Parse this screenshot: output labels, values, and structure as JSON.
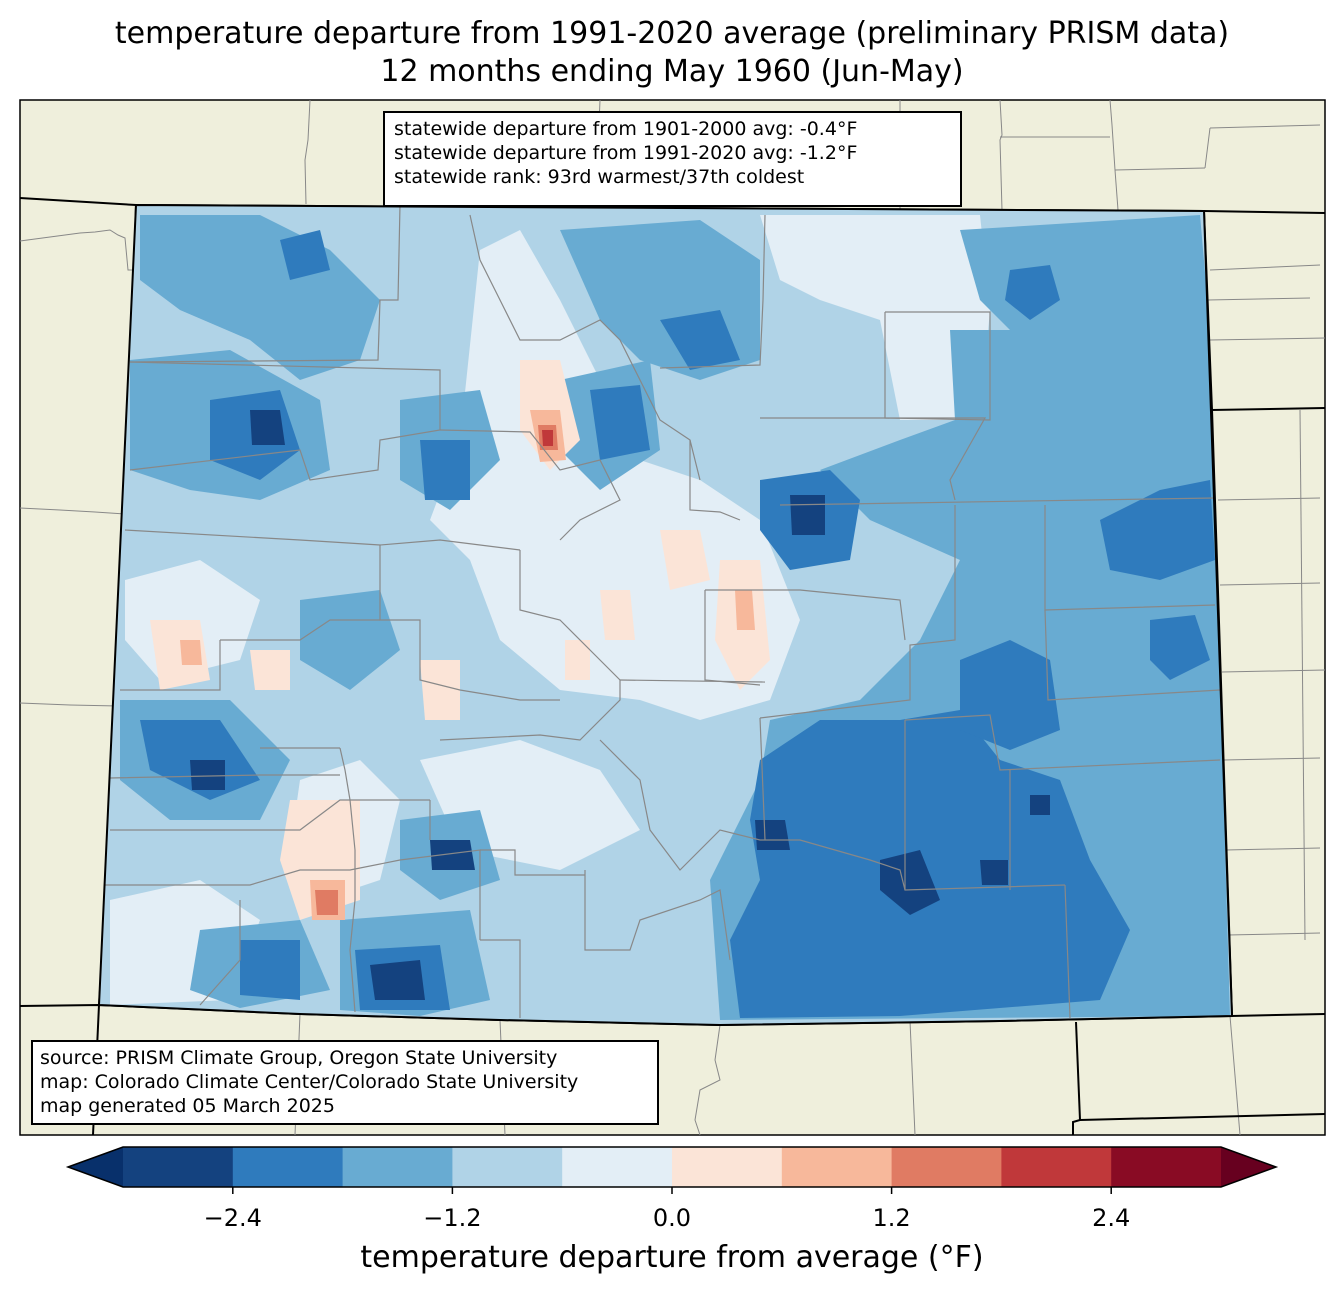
{
  "title": {
    "line1": "temperature departure from 1991-2020 average (preliminary PRISM data)",
    "line2": "12 months ending May 1960 (Jun-May)"
  },
  "stats": {
    "line1": "statewide departure from 1901-2000 avg: -0.4°F",
    "line2": "statewide departure from 1991-2020 avg: -1.2°F",
    "line3": "statewide rank: 93rd warmest/37th coldest"
  },
  "source": {
    "line1": "source: PRISM Climate Group, Oregon State University",
    "line2": "map: Colorado Climate Center/Colorado State University",
    "line3": "map generated 05 March 2025"
  },
  "colorbar": {
    "label": "temperature departure from average (°F)",
    "ticks": [
      "−2.4",
      "−1.2",
      "0.0",
      "1.2",
      "2.4"
    ],
    "tick_values": [
      -2.4,
      -1.2,
      0.0,
      1.2,
      2.4
    ],
    "min": -3.0,
    "max": 3.0,
    "step": 0.6,
    "colors": [
      "#14427f",
      "#2f7bbd",
      "#68abd2",
      "#b0d3e7",
      "#e3eef6",
      "#fbe4d7",
      "#f7b89b",
      "#e07b63",
      "#c0383a",
      "#890b24"
    ],
    "under_color": "#08306b",
    "over_color": "#67001f"
  },
  "map_colors": {
    "background": "#efefdc",
    "state_fill": "#b0d3e7"
  }
}
